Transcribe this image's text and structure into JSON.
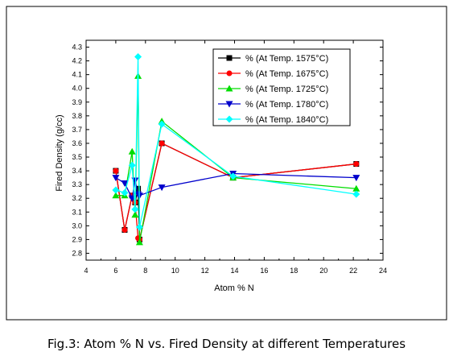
{
  "caption": "Fig.3: Atom % N vs. Fired Density at different Temperatures",
  "chart_data": {
    "type": "line",
    "title": "",
    "xlabel": "Atom  %  N",
    "ylabel": "Fired Density (g/cc)",
    "xlim": [
      4,
      24
    ],
    "ylim": [
      2.75,
      4.35
    ],
    "xticks": [
      4,
      6,
      8,
      10,
      12,
      14,
      16,
      18,
      20,
      22,
      24
    ],
    "yticks": [
      2.8,
      2.9,
      3.0,
      3.1,
      3.2,
      3.3,
      3.4,
      3.5,
      3.6,
      3.7,
      3.8,
      3.9,
      4.0,
      4.1,
      4.2,
      4.3
    ],
    "grid": false,
    "legend_position": "top-right",
    "series": [
      {
        "name": "% (At Temp. 1575°C)",
        "color": "#000000",
        "marker": "square",
        "points": [
          [
            6.0,
            3.4
          ],
          [
            6.6,
            2.97
          ],
          [
            7.1,
            3.22
          ],
          [
            7.3,
            3.17
          ],
          [
            7.5,
            3.27
          ],
          [
            7.6,
            2.9
          ],
          [
            9.1,
            3.6
          ],
          [
            13.9,
            3.35
          ],
          [
            22.2,
            3.45
          ]
        ]
      },
      {
        "name": "% (At Temp. 1675°C)",
        "color": "#ff0000",
        "marker": "circle",
        "points": [
          [
            6.0,
            3.4
          ],
          [
            6.6,
            2.97
          ],
          [
            7.1,
            3.22
          ],
          [
            7.3,
            3.17
          ],
          [
            7.5,
            2.91
          ],
          [
            7.6,
            2.9
          ],
          [
            9.1,
            3.6
          ],
          [
            13.9,
            3.35
          ],
          [
            22.2,
            3.45
          ]
        ]
      },
      {
        "name": "% (At Temp. 1725°C)",
        "color": "#00dd00",
        "marker": "triangle-up",
        "points": [
          [
            6.0,
            3.22
          ],
          [
            6.6,
            3.22
          ],
          [
            7.1,
            3.54
          ],
          [
            7.3,
            3.08
          ],
          [
            7.5,
            4.09
          ],
          [
            7.6,
            2.88
          ],
          [
            9.1,
            3.76
          ],
          [
            13.9,
            3.35
          ],
          [
            22.2,
            3.27
          ]
        ]
      },
      {
        "name": "% (At Temp. 1780°C)",
        "color": "#0000cc",
        "marker": "triangle-down",
        "points": [
          [
            6.0,
            3.35
          ],
          [
            6.6,
            3.31
          ],
          [
            7.1,
            3.2
          ],
          [
            7.3,
            3.33
          ],
          [
            7.5,
            3.23
          ],
          [
            7.6,
            3.22
          ],
          [
            9.1,
            3.28
          ],
          [
            13.9,
            3.38
          ],
          [
            22.2,
            3.35
          ]
        ]
      },
      {
        "name": "% (At Temp. 1840°C)",
        "color": "#00ffff",
        "marker": "diamond",
        "points": [
          [
            6.0,
            3.26
          ],
          [
            6.6,
            3.24
          ],
          [
            7.1,
            3.44
          ],
          [
            7.3,
            3.12
          ],
          [
            7.5,
            4.23
          ],
          [
            7.6,
            2.99
          ],
          [
            9.1,
            3.74
          ],
          [
            13.9,
            3.36
          ],
          [
            22.2,
            3.23
          ]
        ]
      }
    ]
  }
}
